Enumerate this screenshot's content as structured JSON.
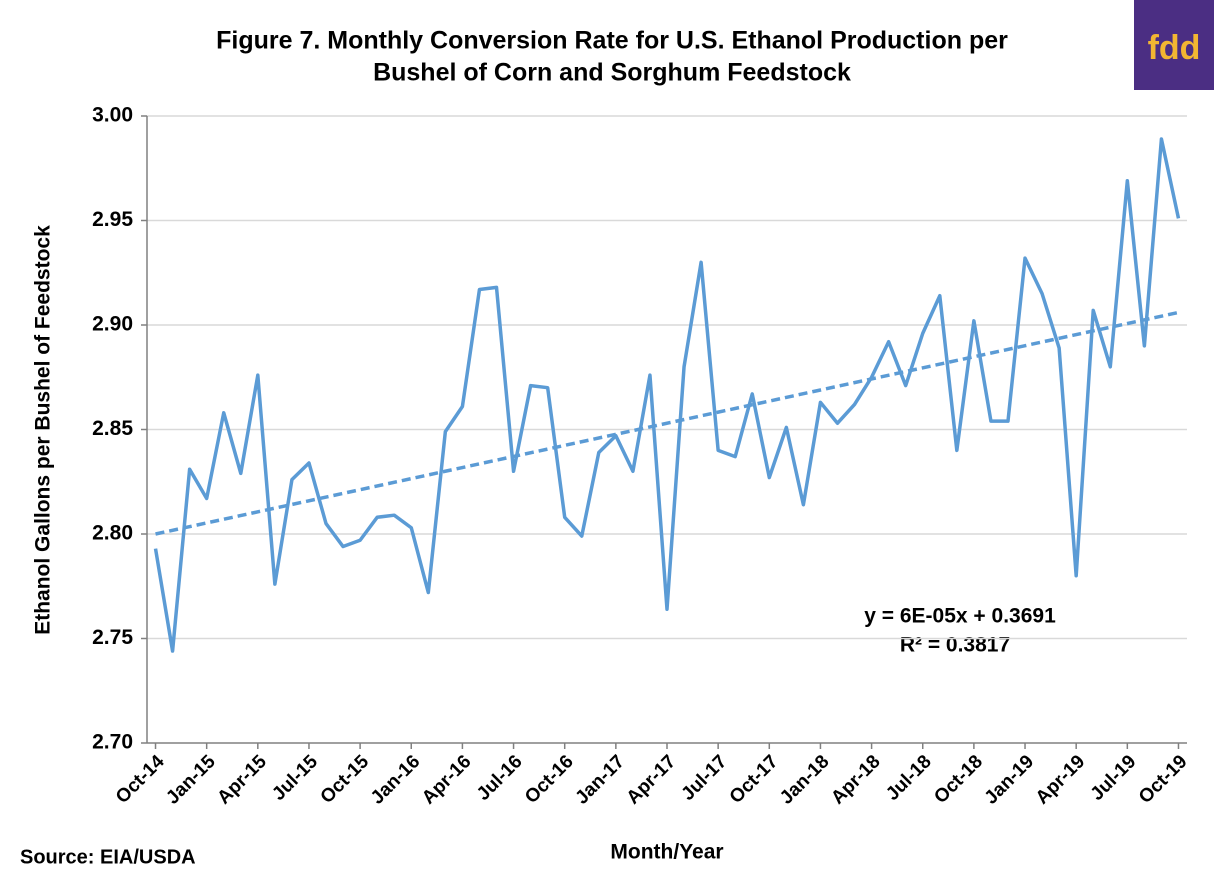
{
  "chart_data": {
    "type": "line",
    "title": [
      "Figure 7. Monthly  Conversion Rate for U.S. Ethanol Production per",
      "Bushel of Corn and Sorghum Feedstock"
    ],
    "logo": "fdd",
    "source": "Source: EIA/USDA",
    "x_label": "Month/Year",
    "y_label": "Ethanol Gallons per Bushel of Feedstock",
    "categories": [
      "Oct-14",
      null,
      null,
      "Jan-15",
      null,
      null,
      "Apr-15",
      null,
      null,
      "Jul-15",
      null,
      null,
      "Oct-15",
      null,
      null,
      "Jan-16",
      null,
      null,
      "Apr-16",
      null,
      null,
      "Jul-16",
      null,
      null,
      "Oct-16",
      null,
      null,
      "Jan-17",
      null,
      null,
      "Apr-17",
      null,
      null,
      "Jul-17",
      null,
      null,
      "Oct-17",
      null,
      null,
      "Jan-18",
      null,
      null,
      "Apr-18",
      null,
      null,
      "Jul-18",
      null,
      null,
      "Oct-18",
      null,
      null,
      "Jan-19",
      null,
      null,
      "Apr-19",
      null,
      null,
      "Jul-19",
      null,
      null,
      "Oct-19"
    ],
    "series": [
      {
        "color": "#5b9bd5",
        "values": [
          2.793,
          2.744,
          2.831,
          2.817,
          2.858,
          2.829,
          2.876,
          2.776,
          2.826,
          2.834,
          2.805,
          2.794,
          2.797,
          2.808,
          2.809,
          2.803,
          2.772,
          2.849,
          2.861,
          2.917,
          2.918,
          2.83,
          2.871,
          2.87,
          2.808,
          2.799,
          2.839,
          2.847,
          2.83,
          2.876,
          2.764,
          2.88,
          2.93,
          2.84,
          2.837,
          2.867,
          2.827,
          2.851,
          2.814,
          2.863,
          2.853,
          2.862,
          2.875,
          2.892,
          2.871,
          2.896,
          2.914,
          2.84,
          2.902,
          2.854,
          2.854,
          2.932,
          2.915,
          2.889,
          2.78,
          2.907,
          2.88,
          2.969,
          2.89,
          2.989,
          2.951
        ]
      }
    ],
    "trendline": {
      "color": "#5b9bd5",
      "dashed": true,
      "start": 2.8,
      "end": 2.906,
      "equation": "y = 6E-05x + 0.3691",
      "r_squared": "R² = 0.3817"
    },
    "ylim": [
      2.7,
      3.0
    ],
    "yticks": [
      {
        "value": 2.7,
        "label": "2.70"
      },
      2.75,
      {
        "value": 2.8,
        "label": "2.80"
      },
      2.85,
      {
        "value": 2.9,
        "label": "2.90"
      },
      2.95,
      {
        "value": 3.0,
        "label": "3.00"
      }
    ],
    "grid": true
  }
}
